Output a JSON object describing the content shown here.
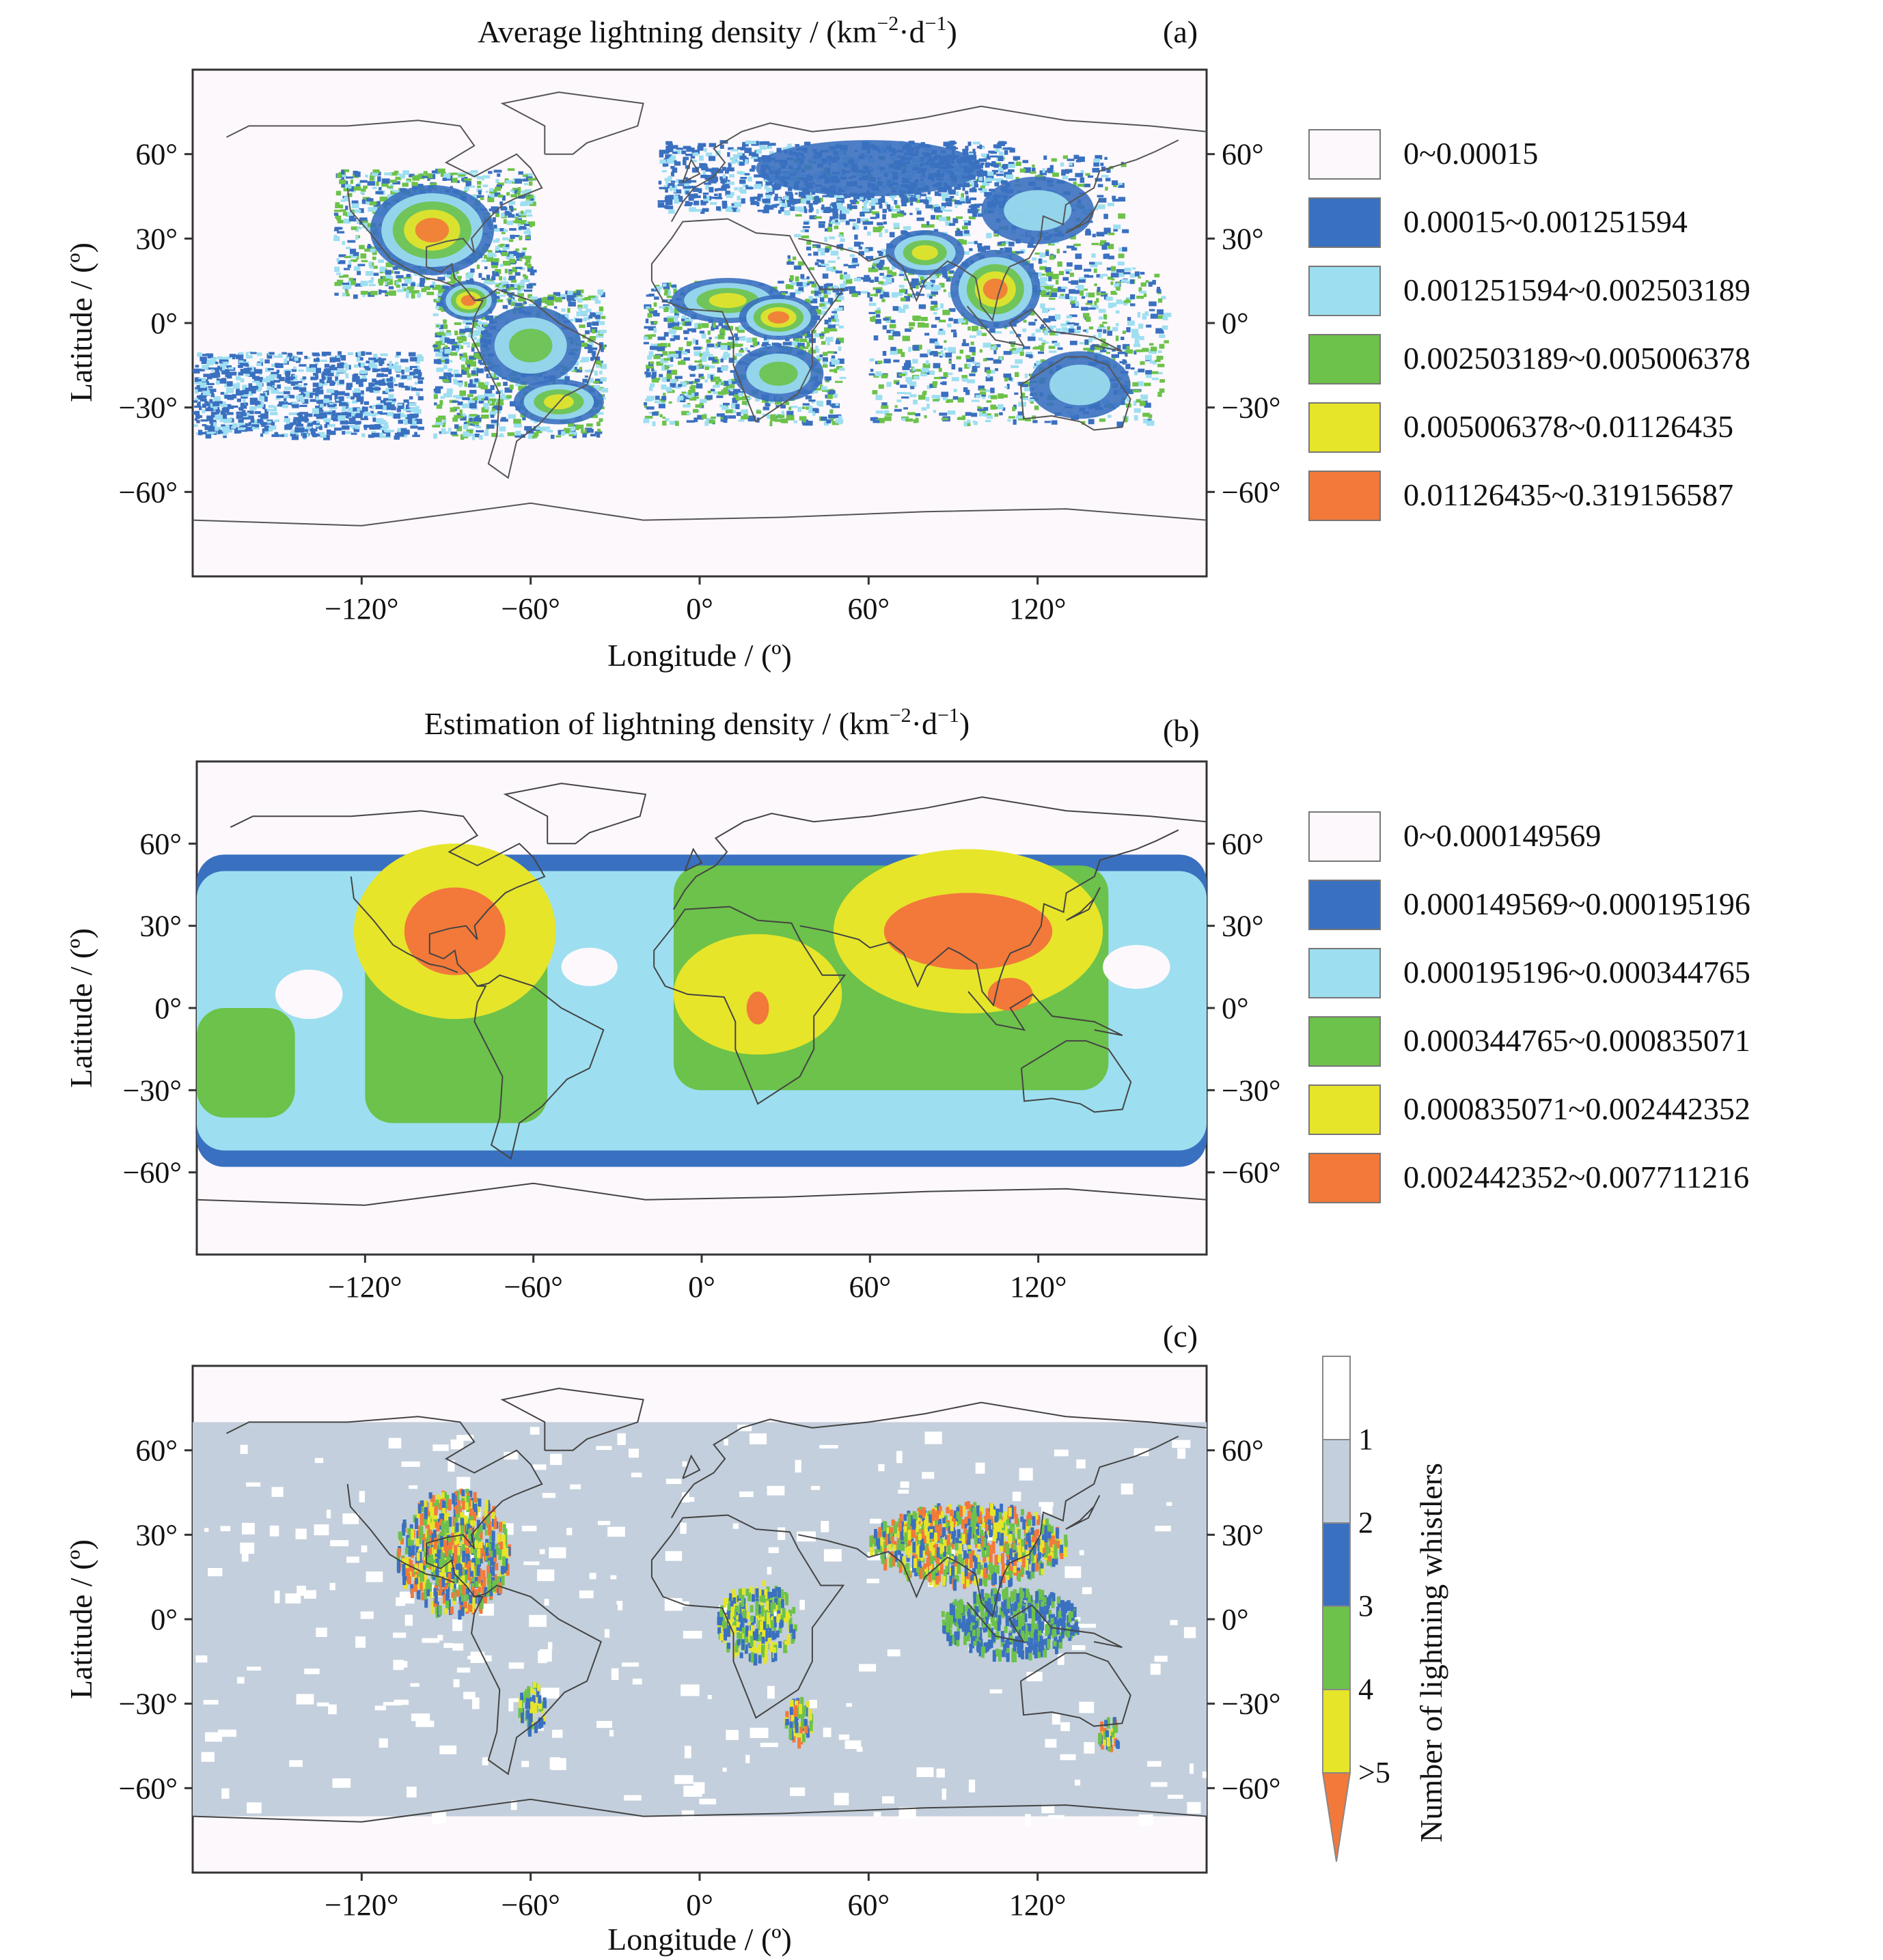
{
  "chart_data": [
    {
      "type": "heatmap",
      "panel_label": "(a)",
      "title": "Average lightning density / (km",
      "title_unit_sup1": "−2",
      "title_unit_mid": "·d",
      "title_unit_sup2": "−1",
      "title_unit_end": ")",
      "xlabel": "Longitude / (º)",
      "ylabel": "Latitude / (º)",
      "xlim": [
        -180,
        180
      ],
      "ylim": [
        -90,
        90
      ],
      "x_ticks": [
        "−120°",
        "−60°",
        "0°",
        "60°",
        "120°"
      ],
      "x_tick_values": [
        -120,
        -60,
        0,
        60,
        120
      ],
      "y_ticks": [
        "60°",
        "30°",
        "0°",
        "−30°",
        "−60°"
      ],
      "y_tick_values": [
        60,
        30,
        0,
        -30,
        -60
      ],
      "legend": [
        {
          "label": "0~0.00015",
          "color": "#fdf8fc"
        },
        {
          "label": "0.00015~0.001251594",
          "color": "#3a70c0"
        },
        {
          "label": "0.001251594~0.002503189",
          "color": "#9ddff0"
        },
        {
          "label": "0.002503189~0.005006378",
          "color": "#6cc24a"
        },
        {
          "label": "0.005006378~0.01126435",
          "color": "#e6e52a"
        },
        {
          "label": "0.01126435~0.319156587",
          "color": "#f2793a"
        }
      ],
      "hotspots": [
        {
          "lon": -95,
          "lat": 33,
          "rx": 22,
          "ry": 16,
          "level": 5
        },
        {
          "lon": -82,
          "lat": 8,
          "rx": 10,
          "ry": 7,
          "level": 5
        },
        {
          "lon": -60,
          "lat": -8,
          "rx": 18,
          "ry": 14,
          "level": 3
        },
        {
          "lon": -50,
          "lat": -28,
          "rx": 16,
          "ry": 8,
          "level": 4
        },
        {
          "lon": 10,
          "lat": 8,
          "rx": 20,
          "ry": 8,
          "level": 4
        },
        {
          "lon": 28,
          "lat": 2,
          "rx": 14,
          "ry": 8,
          "level": 5
        },
        {
          "lon": 28,
          "lat": -18,
          "rx": 16,
          "ry": 10,
          "level": 3
        },
        {
          "lon": 80,
          "lat": 25,
          "rx": 14,
          "ry": 8,
          "level": 4
        },
        {
          "lon": 105,
          "lat": 12,
          "rx": 16,
          "ry": 14,
          "level": 5
        },
        {
          "lon": 120,
          "lat": 40,
          "rx": 20,
          "ry": 12,
          "level": 2
        },
        {
          "lon": 60,
          "lat": 55,
          "rx": 40,
          "ry": 10,
          "level": 1
        },
        {
          "lon": 135,
          "lat": -22,
          "rx": 18,
          "ry": 12,
          "level": 2
        }
      ]
    },
    {
      "type": "heatmap",
      "panel_label": "(b)",
      "title": "Estimation of lightning density / (km",
      "title_unit_sup1": "−2",
      "title_unit_mid": "·d",
      "title_unit_sup2": "−1",
      "title_unit_end": ")",
      "xlabel": "",
      "ylabel": "Latitude / (º)",
      "xlim": [
        -180,
        180
      ],
      "ylim": [
        -90,
        90
      ],
      "x_ticks": [
        "−120°",
        "−60°",
        "0°",
        "60°",
        "120°"
      ],
      "x_tick_values": [
        -120,
        -60,
        0,
        60,
        120
      ],
      "y_ticks": [
        "60°",
        "30°",
        "0°",
        "−30°",
        "−60°"
      ],
      "y_tick_values": [
        60,
        30,
        0,
        -30,
        -60
      ],
      "legend": [
        {
          "label": "0~0.000149569",
          "color": "#fdf8fc"
        },
        {
          "label": "0.000149569~0.000195196",
          "color": "#3a70c0"
        },
        {
          "label": "0.000195196~0.000344765",
          "color": "#9ddff0"
        },
        {
          "label": "0.000344765~0.000835071",
          "color": "#6cc24a"
        },
        {
          "label": "0.000835071~0.002442352",
          "color": "#e6e52a"
        },
        {
          "label": "0.002442352~0.007711216",
          "color": "#f2793a"
        }
      ],
      "hotspots": [
        {
          "lon": -88,
          "lat": 28,
          "rx": 36,
          "ry": 32,
          "level": 4
        },
        {
          "lon": -88,
          "lat": 28,
          "rx": 18,
          "ry": 16,
          "level": 5
        },
        {
          "lon": 20,
          "lat": 5,
          "rx": 30,
          "ry": 22,
          "level": 4
        },
        {
          "lon": 20,
          "lat": 0,
          "rx": 4,
          "ry": 6,
          "level": 5
        },
        {
          "lon": 95,
          "lat": 28,
          "rx": 48,
          "ry": 30,
          "level": 4
        },
        {
          "lon": 95,
          "lat": 28,
          "rx": 30,
          "ry": 14,
          "level": 5
        },
        {
          "lon": 110,
          "lat": 5,
          "rx": 8,
          "ry": 6,
          "level": 5
        }
      ]
    },
    {
      "type": "heatmap",
      "panel_label": "(c)",
      "title": "",
      "xlabel": "Longitude / (º)",
      "ylabel": "Latitude / (º)",
      "colorbar_label": "Number of lightning whistlers",
      "xlim": [
        -180,
        180
      ],
      "ylim": [
        -90,
        90
      ],
      "x_ticks": [
        "−120°",
        "−60°",
        "0°",
        "60°",
        "120°"
      ],
      "x_tick_values": [
        -120,
        -60,
        0,
        60,
        120
      ],
      "y_ticks": [
        "60°",
        "30°",
        "0°",
        "−30°",
        "−60°"
      ],
      "y_tick_values": [
        60,
        30,
        0,
        -30,
        -60
      ],
      "colorbar_labels": [
        "1",
        "2",
        "3",
        "4",
        ">5"
      ],
      "colorbar_colors": [
        "#ffffff",
        "#c3cfdc",
        "#3a70c0",
        "#6cc24a",
        "#e6e52a",
        "#f2793a"
      ],
      "hotspots": [
        {
          "lon": -88,
          "lat": 25,
          "rx": 20,
          "ry": 22,
          "level": 4
        },
        {
          "lon": -88,
          "lat": 25,
          "rx": 10,
          "ry": 12,
          "level": 5
        },
        {
          "lon": 20,
          "lat": 0,
          "rx": 14,
          "ry": 14,
          "level": 3
        },
        {
          "lon": 35,
          "lat": -35,
          "rx": 5,
          "ry": 8,
          "level": 4
        },
        {
          "lon": 95,
          "lat": 28,
          "rx": 35,
          "ry": 14,
          "level": 4
        },
        {
          "lon": 80,
          "lat": 32,
          "rx": 10,
          "ry": 8,
          "level": 5
        },
        {
          "lon": 110,
          "lat": 0,
          "rx": 25,
          "ry": 12,
          "level": 2
        },
        {
          "lon": -60,
          "lat": -30,
          "rx": 5,
          "ry": 8,
          "level": 3
        },
        {
          "lon": 145,
          "lat": -40,
          "rx": 4,
          "ry": 6,
          "level": 4
        }
      ]
    }
  ]
}
